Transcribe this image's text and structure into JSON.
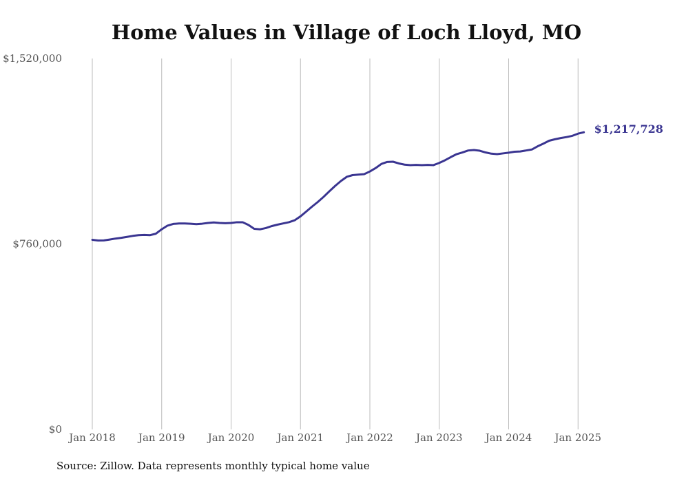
{
  "chart_data": {
    "type": "line",
    "title": "Home Values in Village of Loch Lloyd, MO",
    "source": "Source: Zillow. Data represents monthly typical home value",
    "xlabel": "",
    "ylabel": "",
    "ylim": [
      0,
      1520000
    ],
    "y_ticks": [
      {
        "value": 0,
        "label": "$0"
      },
      {
        "value": 760000,
        "label": "$760,000"
      },
      {
        "value": 1520000,
        "label": "$1,520,000"
      }
    ],
    "x_ticks": [
      "Jan 2018",
      "Jan 2019",
      "Jan 2020",
      "Jan 2021",
      "Jan 2022",
      "Jan 2023",
      "Jan 2024",
      "Jan 2025"
    ],
    "x_start": "2018-01",
    "grid": "vertical",
    "line_color": "#3a3591",
    "end_label": "$1,217,728",
    "series": [
      {
        "values": [
          777000,
          774000,
          774500,
          778000,
          782000,
          785000,
          789000,
          793000,
          796000,
          797000,
          796000,
          802000,
          820000,
          835000,
          842000,
          844000,
          844000,
          843000,
          841000,
          843000,
          846000,
          848000,
          846000,
          845000,
          846000,
          849000,
          849000,
          838000,
          822000,
          820000,
          825000,
          833000,
          839000,
          844000,
          849000,
          857000,
          873000,
          893000,
          913000,
          932000,
          953000,
          976000,
          998000,
          1018000,
          1035000,
          1042000,
          1044000,
          1046000,
          1057000,
          1071000,
          1088000,
          1096000,
          1097000,
          1090000,
          1085000,
          1083000,
          1084000,
          1083000,
          1084000,
          1083000,
          1092000,
          1103000,
          1116000,
          1128000,
          1135000,
          1143000,
          1145000,
          1142000,
          1135000,
          1130000,
          1128000,
          1131000,
          1134000,
          1138000,
          1139000,
          1143000,
          1147000,
          1160000,
          1171000,
          1183000,
          1189000,
          1194000,
          1198000,
          1203000,
          1212000,
          1217728
        ]
      }
    ]
  }
}
